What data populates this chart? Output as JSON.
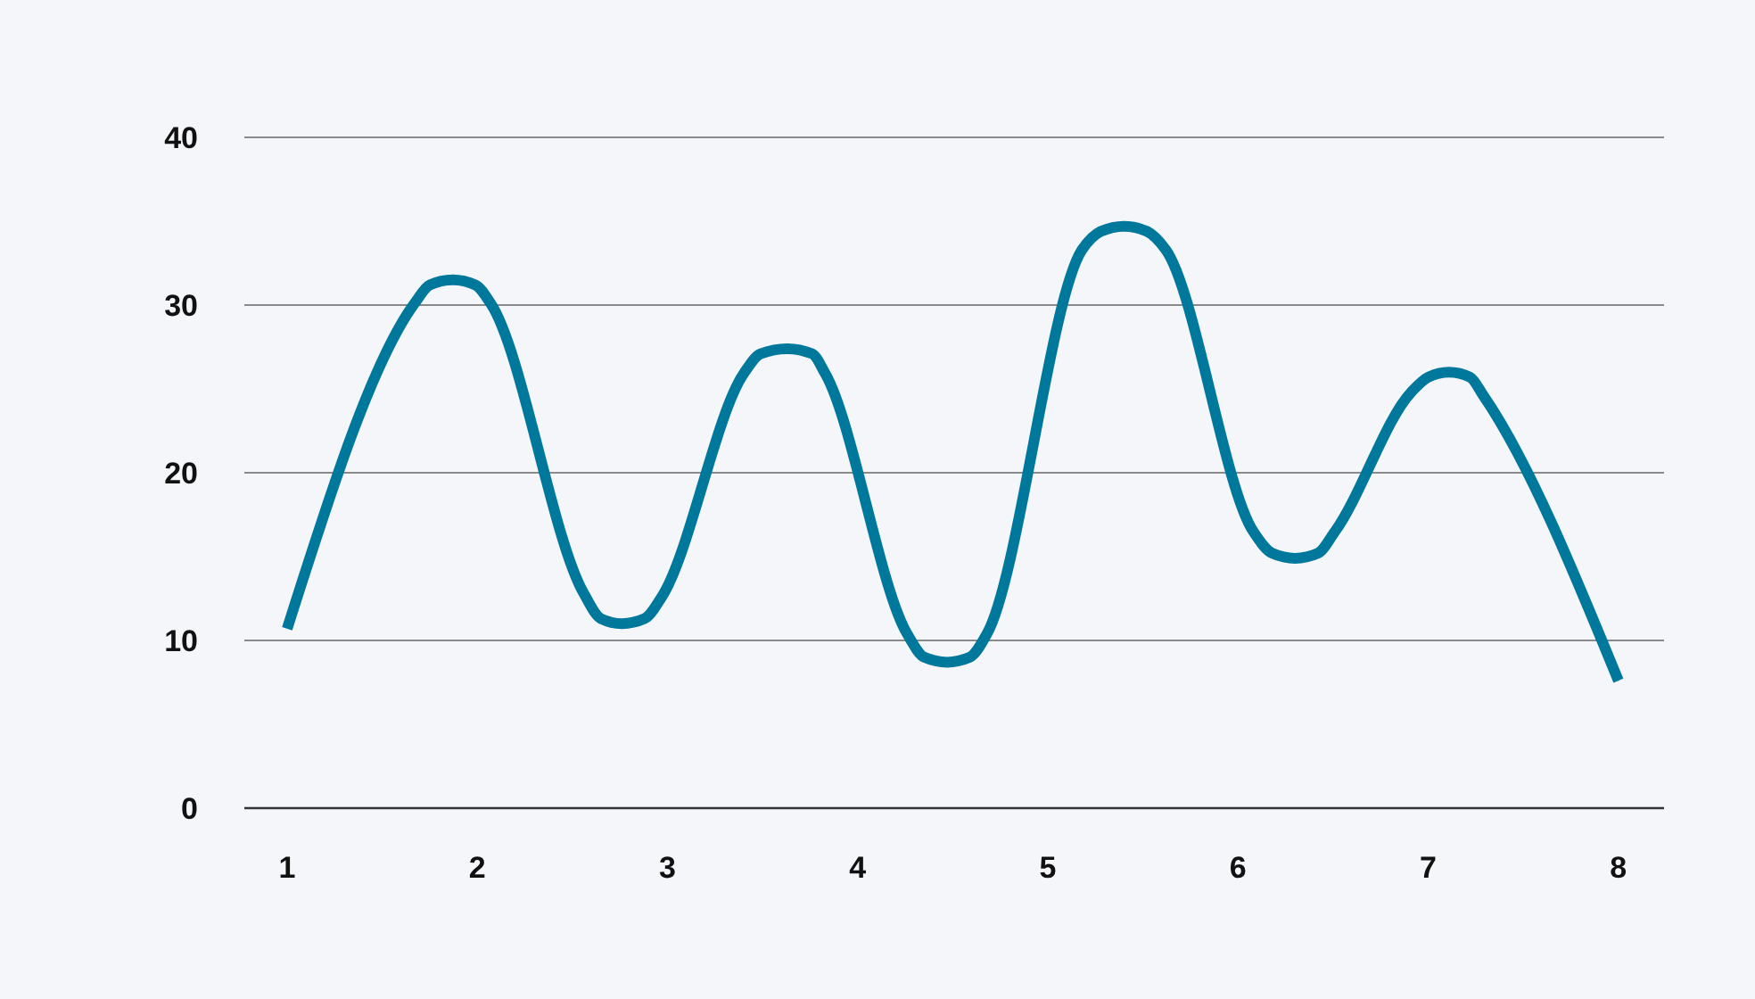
{
  "chart_data": {
    "type": "line",
    "x": [
      1,
      1.67,
      1.75,
      1.87,
      1.99,
      2.07,
      2.56,
      2.65,
      2.76,
      2.88,
      2.97,
      3.4,
      3.49,
      3.63,
      3.76,
      3.83,
      4.26,
      4.35,
      4.47,
      4.59,
      4.68,
      5.18,
      5.28,
      5.4,
      5.52,
      5.62,
      6.08,
      6.18,
      6.3,
      6.42,
      6.51,
      6.91,
      7,
      7.11,
      7.22,
      7.29,
      8
    ],
    "series": [
      {
        "color": "#00789c",
        "values": [
          10.7,
          30.1,
          31.2,
          31.5,
          31.2,
          30.1,
          12.8,
          11.3,
          11,
          11.3,
          12.6,
          25.9,
          27.1,
          27.4,
          27.1,
          25.9,
          10.4,
          9,
          8.7,
          9,
          10.4,
          33.3,
          34.4,
          34.7,
          34.4,
          33.3,
          16.5,
          15.2,
          14.9,
          15.2,
          16.5,
          24.8,
          25.7,
          26,
          25.7,
          24.6,
          7.6
        ]
      }
    ],
    "xlim": [
      0.775,
      8.24
    ],
    "xticks": [
      1,
      2,
      3,
      4,
      5,
      6,
      7,
      8
    ],
    "ylim": [
      0,
      40
    ],
    "yticks": [
      0,
      10,
      20,
      30,
      40
    ],
    "grid": "y"
  }
}
